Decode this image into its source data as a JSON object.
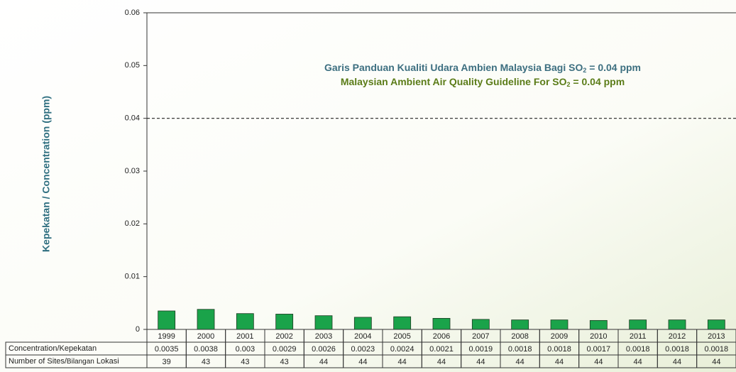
{
  "chart_data": {
    "type": "bar",
    "y_label": "Kepekatan / Concentration (ppm)",
    "annotation_1": [
      "Garis Panduan Kualiti Udara Ambien Malaysia Bagi SO",
      "2",
      " = 0.04 ppm"
    ],
    "annotation_2": [
      "Malaysian Ambient Air Quality Guideline For SO",
      "2",
      " = 0.04 ppm"
    ],
    "guideline": 0.04,
    "categories": [
      "1999",
      "2000",
      "2001",
      "2002",
      "2003",
      "2004",
      "2005",
      "2006",
      "2007",
      "2008",
      "2009",
      "2010",
      "2011",
      "2012",
      "2013"
    ],
    "values": [
      0.0035,
      0.0038,
      0.003,
      0.0029,
      0.0026,
      0.0023,
      0.0024,
      0.0021,
      0.0019,
      0.0018,
      0.0018,
      0.0017,
      0.0018,
      0.0018,
      0.0018
    ],
    "sites": [
      39,
      43,
      43,
      43,
      44,
      44,
      44,
      44,
      44,
      44,
      44,
      44,
      44,
      44,
      44
    ],
    "row_label_values": "Concentration/Kepekatan",
    "row_label_sites": [
      "Number of Sites/",
      "Bilangan",
      " Lokasi"
    ],
    "color": "#1aa34a",
    "ylim": [
      0,
      0.06
    ],
    "yticks": [
      0,
      0.01,
      0.02,
      0.03,
      0.04,
      0.05,
      0.06
    ]
  }
}
